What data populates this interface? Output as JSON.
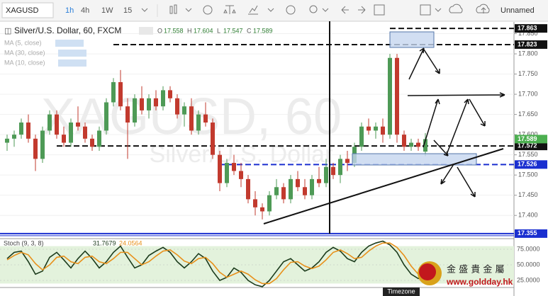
{
  "toolbar": {
    "symbol": "XAGUSD",
    "intervals": [
      "1h",
      "4h",
      "1W",
      "15"
    ],
    "layout_name": "Unnamed"
  },
  "chart_data": {
    "type": "candlestick",
    "title": "Silver/U.S. Dollar, 60, FXCM",
    "watermark": "XAGUSD, 60",
    "watermark_subtitle": "Silver/U.S. Dollar",
    "ohlc_labels": [
      "O",
      "H",
      "L",
      "C"
    ],
    "indicators": [
      "MA (5, close)",
      "MA (30, close)",
      "MA (10, close)"
    ],
    "up_color": "#4e9a56",
    "down_color": "#c23a2e",
    "open": [
      17.58,
      17.59,
      17.6,
      17.63,
      17.59,
      17.54,
      17.61,
      17.65,
      17.6,
      17.58,
      17.63,
      17.62,
      17.59,
      17.57,
      17.61,
      17.68,
      17.73,
      17.67,
      17.63,
      17.69,
      17.66,
      17.69,
      17.67,
      17.71,
      17.69,
      17.65,
      17.67,
      17.61,
      17.65,
      17.63,
      17.55,
      17.48,
      17.53,
      17.51,
      17.49,
      17.44,
      17.42,
      17.41,
      17.45,
      17.47,
      17.44,
      17.49,
      17.47,
      17.45,
      17.49,
      17.48,
      17.52,
      17.5,
      17.54,
      17.53,
      17.57,
      17.62,
      17.61,
      17.62,
      17.6,
      17.79,
      17.6,
      17.57,
      17.58,
      17.558
    ],
    "high": [
      17.6,
      17.61,
      17.64,
      17.65,
      17.6,
      17.62,
      17.66,
      17.66,
      17.62,
      17.64,
      17.67,
      17.63,
      17.6,
      17.62,
      17.69,
      17.74,
      17.76,
      17.69,
      17.7,
      17.72,
      17.7,
      17.71,
      17.72,
      17.72,
      17.7,
      17.68,
      17.69,
      17.66,
      17.68,
      17.64,
      17.56,
      17.54,
      17.55,
      17.53,
      17.5,
      17.46,
      17.43,
      17.46,
      17.49,
      17.48,
      17.5,
      17.51,
      17.49,
      17.5,
      17.52,
      17.54,
      17.53,
      17.55,
      17.56,
      17.58,
      17.63,
      17.64,
      17.63,
      17.64,
      17.8,
      17.8,
      17.61,
      17.59,
      17.59,
      17.604
    ],
    "low": [
      17.56,
      17.57,
      17.59,
      17.58,
      17.51,
      17.53,
      17.6,
      17.59,
      17.57,
      17.57,
      17.61,
      17.58,
      17.56,
      17.56,
      17.6,
      17.67,
      17.66,
      17.54,
      17.62,
      17.65,
      17.64,
      17.66,
      17.66,
      17.68,
      17.64,
      17.62,
      17.6,
      17.6,
      17.62,
      17.54,
      17.46,
      17.47,
      17.5,
      17.47,
      17.43,
      17.4,
      17.39,
      17.4,
      17.44,
      17.43,
      17.43,
      17.46,
      17.44,
      17.44,
      17.47,
      17.47,
      17.49,
      17.48,
      17.51,
      17.52,
      17.56,
      17.6,
      17.59,
      17.58,
      17.59,
      17.58,
      17.56,
      17.56,
      17.56,
      17.547
    ],
    "close": [
      17.59,
      17.6,
      17.63,
      17.59,
      17.54,
      17.61,
      17.65,
      17.6,
      17.58,
      17.63,
      17.62,
      17.59,
      17.57,
      17.61,
      17.68,
      17.73,
      17.67,
      17.63,
      17.69,
      17.66,
      17.69,
      17.67,
      17.71,
      17.69,
      17.65,
      17.67,
      17.61,
      17.65,
      17.63,
      17.55,
      17.48,
      17.53,
      17.51,
      17.49,
      17.44,
      17.42,
      17.41,
      17.45,
      17.47,
      17.44,
      17.49,
      17.47,
      17.45,
      17.49,
      17.48,
      17.52,
      17.5,
      17.54,
      17.53,
      17.57,
      17.62,
      17.61,
      17.62,
      17.6,
      17.79,
      17.6,
      17.57,
      17.58,
      17.57,
      17.589
    ],
    "ylim": [
      17.346,
      17.872
    ],
    "yticks": [
      {
        "value": 17.4,
        "label": "17.400"
      },
      {
        "value": 17.45,
        "label": "17.450"
      },
      {
        "value": 17.5,
        "label": "17.500"
      },
      {
        "value": 17.55,
        "label": "17.550"
      },
      {
        "value": 17.6,
        "label": "17.600"
      },
      {
        "value": 17.65,
        "label": "17.650"
      },
      {
        "value": 17.7,
        "label": "17.700"
      },
      {
        "value": 17.75,
        "label": "17.750"
      },
      {
        "value": 17.8,
        "label": "17.800"
      },
      {
        "value": 17.85,
        "label": "17.850"
      }
    ],
    "grid": true,
    "levels": [
      {
        "value": 17.863,
        "color": "#111111",
        "style": "dashed"
      },
      {
        "value": 17.823,
        "color": "#111111",
        "style": "dashed"
      },
      {
        "value": 17.572,
        "color": "#111111",
        "style": "dashed"
      },
      {
        "value": 17.526,
        "color": "#1a2fd0",
        "style": "dashed"
      },
      {
        "value": 17.355,
        "color": "#1a2fd0",
        "style": "solid"
      }
    ],
    "last_price_color": "#4caf50",
    "stoch": {
      "label": "Stoch (9, 3, 8)",
      "ylim": [
        14.8,
        88.6
      ],
      "yticks": [
        {
          "value": 25,
          "label": "25.0000"
        },
        {
          "value": 50,
          "label": "50.0000"
        },
        {
          "value": 75,
          "label": "75.0000"
        }
      ],
      "band": [
        20,
        80
      ],
      "band_color": "#e3f2dc",
      "k": {
        "color": "#1c3b1c",
        "values": [
          60,
          70,
          72,
          55,
          35,
          40,
          62,
          70,
          58,
          45,
          60,
          72,
          60,
          45,
          55,
          70,
          80,
          62,
          45,
          50,
          65,
          72,
          78,
          70,
          55,
          45,
          55,
          68,
          60,
          40,
          25,
          30,
          45,
          38,
          25,
          18,
          15,
          25,
          40,
          55,
          60,
          50,
          40,
          45,
          55,
          70,
          78,
          72,
          60,
          55,
          70,
          80,
          85,
          88,
          82,
          70,
          50,
          35,
          28,
          31.7679
        ]
      },
      "d": {
        "color": "#e8901a",
        "values": [
          58,
          65,
          70,
          66,
          52,
          42,
          50,
          62,
          64,
          55,
          52,
          62,
          64,
          55,
          52,
          60,
          70,
          70,
          60,
          50,
          55,
          64,
          72,
          74,
          66,
          56,
          52,
          60,
          62,
          52,
          38,
          30,
          35,
          40,
          35,
          26,
          20,
          20,
          28,
          42,
          54,
          55,
          48,
          44,
          48,
          58,
          70,
          74,
          68,
          60,
          62,
          72,
          80,
          85,
          85,
          78,
          65,
          48,
          35,
          24.0564
        ]
      }
    },
    "timezone_label": "Timezone"
  },
  "logo": {
    "name": "金 盛 貴 金 屬",
    "url": "www.goldday.hk"
  }
}
